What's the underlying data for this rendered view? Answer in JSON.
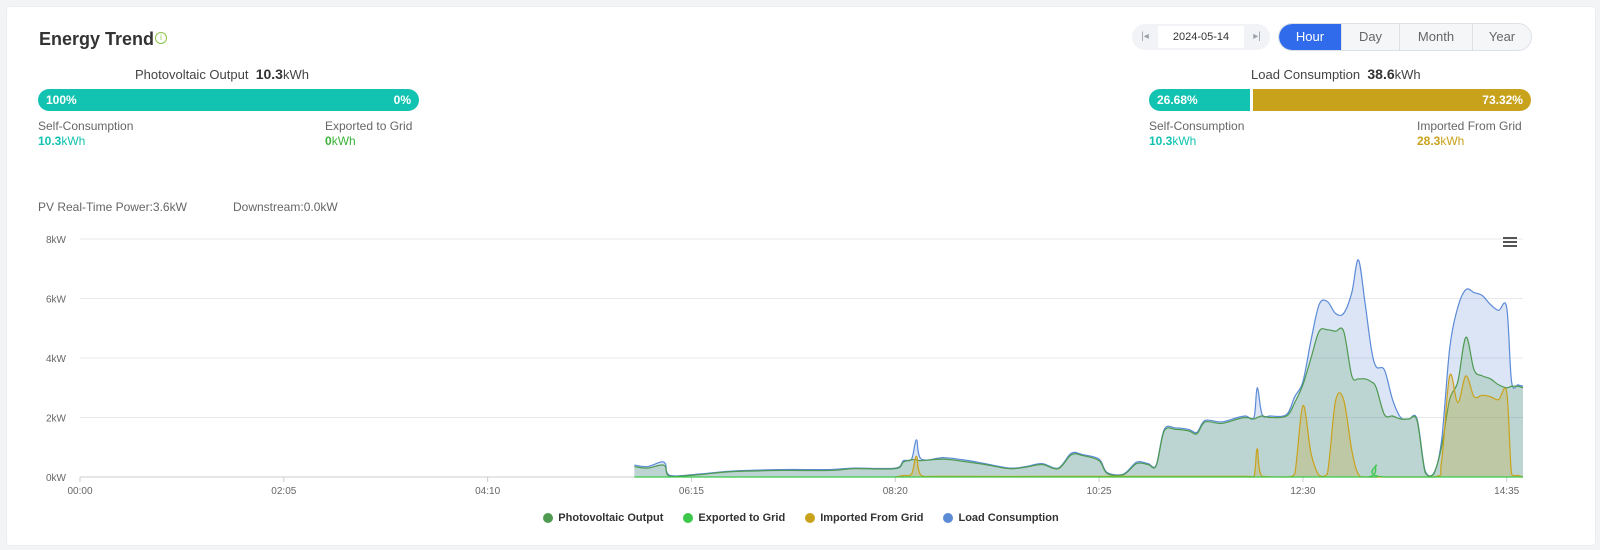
{
  "header": {
    "title": "Energy Trend",
    "info_icon": "info-circle-icon"
  },
  "date_picker": {
    "value": "2024-05-14",
    "prev_icon": "skip-back-icon",
    "next_icon": "skip-forward-icon"
  },
  "period_tabs": [
    {
      "label": "Hour",
      "active": true
    },
    {
      "label": "Day",
      "active": false
    },
    {
      "label": "Month",
      "active": false
    },
    {
      "label": "Year",
      "active": false
    }
  ],
  "pv_summary": {
    "title": "Photovoltaic Output",
    "value": "10.3",
    "unit": "kWh",
    "bar": {
      "left_pct": 100,
      "left_label": "100%",
      "right_label": "0%"
    },
    "left_label": "Self-Consumption",
    "left_value": "10.3",
    "left_unit": "kWh",
    "right_label": "Exported to Grid",
    "right_value": "0",
    "right_unit": "kWh"
  },
  "load_summary": {
    "title": "Load Consumption",
    "value": "38.6",
    "unit": "kWh",
    "bar": {
      "left_pct": 26.68,
      "left_label": "26.68%",
      "right_label": "73.32%"
    },
    "left_label": "Self-Consumption",
    "left_value": "10.3",
    "left_unit": "kWh",
    "right_label": "Imported From Grid",
    "right_value": "28.3",
    "right_unit": "kWh"
  },
  "realtime": {
    "pv": "PV Real-Time Power:3.6kW",
    "downstream": "Downstream:0.0kW"
  },
  "colors": {
    "teal": "#12c3b1",
    "gold": "#c9a21c",
    "green_text": "#3bb33b",
    "pv": "#4e9a50",
    "exported": "#3bc84b",
    "imported": "#c9a21c",
    "load": "#5b8ad6"
  },
  "chart_data": {
    "type": "area",
    "x_unit": "minutes since 00:00",
    "x_range": [
      0,
      885
    ],
    "y_range": [
      0,
      8
    ],
    "y_ticks": [
      "0kW",
      "2kW",
      "4kW",
      "6kW",
      "8kW"
    ],
    "y_tick_values": [
      0,
      2,
      4,
      6,
      8
    ],
    "x_tick_labels": [
      "00:00",
      "02:05",
      "04:10",
      "06:15",
      "08:20",
      "10:25",
      "12:30",
      "14:35"
    ],
    "x_tick_values": [
      0,
      125,
      250,
      375,
      500,
      625,
      750,
      875
    ],
    "grid": true,
    "menu_icon": "hamburger-menu-icon",
    "series": [
      {
        "name": "Load Consumption",
        "color": "#5b8ad6",
        "points": [
          [
            340,
            0.4
          ],
          [
            348,
            0.35
          ],
          [
            356,
            0.5
          ],
          [
            359,
            0.45
          ],
          [
            362,
            0.05
          ],
          [
            380,
            0.1
          ],
          [
            400,
            0.2
          ],
          [
            430,
            0.25
          ],
          [
            460,
            0.25
          ],
          [
            475,
            0.3
          ],
          [
            500,
            0.3
          ],
          [
            505,
            0.55
          ],
          [
            510,
            0.6
          ],
          [
            513,
            1.25
          ],
          [
            516,
            0.6
          ],
          [
            530,
            0.65
          ],
          [
            545,
            0.55
          ],
          [
            555,
            0.45
          ],
          [
            570,
            0.3
          ],
          [
            580,
            0.35
          ],
          [
            590,
            0.45
          ],
          [
            600,
            0.3
          ],
          [
            608,
            0.8
          ],
          [
            615,
            0.75
          ],
          [
            625,
            0.6
          ],
          [
            630,
            0.15
          ],
          [
            640,
            0.1
          ],
          [
            648,
            0.5
          ],
          [
            655,
            0.45
          ],
          [
            660,
            0.4
          ],
          [
            665,
            1.6
          ],
          [
            672,
            1.65
          ],
          [
            680,
            1.6
          ],
          [
            685,
            1.5
          ],
          [
            690,
            1.9
          ],
          [
            700,
            1.85
          ],
          [
            710,
            2.0
          ],
          [
            715,
            2.05
          ],
          [
            720,
            2.0
          ],
          [
            722,
            3.0
          ],
          [
            725,
            2.1
          ],
          [
            730,
            2.05
          ],
          [
            740,
            2.1
          ],
          [
            745,
            2.7
          ],
          [
            750,
            3.2
          ],
          [
            755,
            4.6
          ],
          [
            760,
            5.8
          ],
          [
            765,
            5.9
          ],
          [
            770,
            5.5
          ],
          [
            775,
            5.5
          ],
          [
            780,
            6.2
          ],
          [
            784,
            7.3
          ],
          [
            788,
            5.9
          ],
          [
            792,
            4.3
          ],
          [
            795,
            3.7
          ],
          [
            800,
            3.6
          ],
          [
            805,
            2.6
          ],
          [
            810,
            2.0
          ],
          [
            815,
            1.95
          ],
          [
            820,
            1.95
          ],
          [
            825,
            0.2
          ],
          [
            830,
            0.1
          ],
          [
            835,
            1.2
          ],
          [
            840,
            4.3
          ],
          [
            845,
            5.7
          ],
          [
            850,
            6.3
          ],
          [
            855,
            6.2
          ],
          [
            860,
            6.1
          ],
          [
            865,
            5.8
          ],
          [
            870,
            5.6
          ],
          [
            875,
            5.7
          ],
          [
            878,
            3.2
          ],
          [
            882,
            3.1
          ],
          [
            885,
            3.05
          ]
        ]
      },
      {
        "name": "Photovoltaic Output",
        "color": "#4e9a50",
        "points": [
          [
            340,
            0.35
          ],
          [
            348,
            0.3
          ],
          [
            356,
            0.4
          ],
          [
            359,
            0.35
          ],
          [
            362,
            0.02
          ],
          [
            380,
            0.08
          ],
          [
            400,
            0.18
          ],
          [
            430,
            0.22
          ],
          [
            460,
            0.22
          ],
          [
            475,
            0.28
          ],
          [
            500,
            0.28
          ],
          [
            505,
            0.5
          ],
          [
            510,
            0.58
          ],
          [
            513,
            0.58
          ],
          [
            516,
            0.55
          ],
          [
            530,
            0.6
          ],
          [
            545,
            0.5
          ],
          [
            555,
            0.42
          ],
          [
            570,
            0.28
          ],
          [
            580,
            0.33
          ],
          [
            590,
            0.42
          ],
          [
            600,
            0.28
          ],
          [
            608,
            0.75
          ],
          [
            615,
            0.72
          ],
          [
            625,
            0.55
          ],
          [
            630,
            0.12
          ],
          [
            640,
            0.08
          ],
          [
            648,
            0.45
          ],
          [
            655,
            0.42
          ],
          [
            660,
            0.38
          ],
          [
            665,
            1.55
          ],
          [
            672,
            1.6
          ],
          [
            680,
            1.55
          ],
          [
            685,
            1.45
          ],
          [
            690,
            1.85
          ],
          [
            700,
            1.8
          ],
          [
            710,
            1.95
          ],
          [
            715,
            2.0
          ],
          [
            720,
            1.95
          ],
          [
            722,
            2.0
          ],
          [
            725,
            2.05
          ],
          [
            730,
            2.0
          ],
          [
            740,
            2.05
          ],
          [
            745,
            2.5
          ],
          [
            750,
            3.1
          ],
          [
            755,
            4.0
          ],
          [
            760,
            4.9
          ],
          [
            765,
            4.95
          ],
          [
            770,
            4.9
          ],
          [
            775,
            4.9
          ],
          [
            780,
            3.4
          ],
          [
            784,
            3.3
          ],
          [
            788,
            3.3
          ],
          [
            792,
            3.2
          ],
          [
            795,
            3.0
          ],
          [
            800,
            2.1
          ],
          [
            805,
            2.05
          ],
          [
            810,
            1.95
          ],
          [
            815,
            1.95
          ],
          [
            820,
            1.9
          ],
          [
            825,
            0.15
          ],
          [
            830,
            0.08
          ],
          [
            835,
            1.0
          ],
          [
            840,
            2.6
          ],
          [
            845,
            3.2
          ],
          [
            850,
            4.7
          ],
          [
            855,
            3.6
          ],
          [
            860,
            3.4
          ],
          [
            865,
            3.3
          ],
          [
            870,
            3.1
          ],
          [
            875,
            3.0
          ],
          [
            878,
            3.05
          ],
          [
            882,
            3.05
          ],
          [
            885,
            3.0
          ]
        ]
      },
      {
        "name": "Imported From Grid",
        "color": "#c9a21c",
        "points": [
          [
            500,
            0.0
          ],
          [
            505,
            0.05
          ],
          [
            510,
            0.1
          ],
          [
            513,
            0.7
          ],
          [
            516,
            0.05
          ],
          [
            530,
            0.02
          ],
          [
            600,
            0.02
          ],
          [
            640,
            0.02
          ],
          [
            690,
            0.02
          ],
          [
            715,
            0.02
          ],
          [
            720,
            0.0
          ],
          [
            722,
            0.95
          ],
          [
            725,
            0.02
          ],
          [
            740,
            0.0
          ],
          [
            745,
            0.1
          ],
          [
            750,
            2.4
          ],
          [
            755,
            0.8
          ],
          [
            760,
            0.05
          ],
          [
            765,
            0.1
          ],
          [
            770,
            2.55
          ],
          [
            775,
            2.6
          ],
          [
            780,
            0.9
          ],
          [
            784,
            0.1
          ],
          [
            790,
            0.0
          ],
          [
            830,
            0.0
          ],
          [
            835,
            0.5
          ],
          [
            840,
            3.4
          ],
          [
            845,
            2.5
          ],
          [
            850,
            3.4
          ],
          [
            855,
            2.7
          ],
          [
            860,
            2.75
          ],
          [
            865,
            2.7
          ],
          [
            870,
            2.6
          ],
          [
            875,
            2.85
          ],
          [
            878,
            0.1
          ],
          [
            882,
            0.05
          ],
          [
            885,
            0.0
          ]
        ]
      },
      {
        "name": "Exported to Grid",
        "color": "#3bc84b",
        "points": [
          [
            340,
            0.0
          ],
          [
            750,
            0.0
          ],
          [
            790,
            0.0
          ],
          [
            795,
            0.4
          ],
          [
            800,
            0.0
          ],
          [
            885,
            0.0
          ]
        ]
      }
    ]
  },
  "legend": [
    {
      "label": "Photovoltaic Output",
      "color": "#4e9a50"
    },
    {
      "label": "Exported to Grid",
      "color": "#3bc84b"
    },
    {
      "label": "Imported From Grid",
      "color": "#c9a21c"
    },
    {
      "label": "Load Consumption",
      "color": "#5b8ad6"
    }
  ]
}
